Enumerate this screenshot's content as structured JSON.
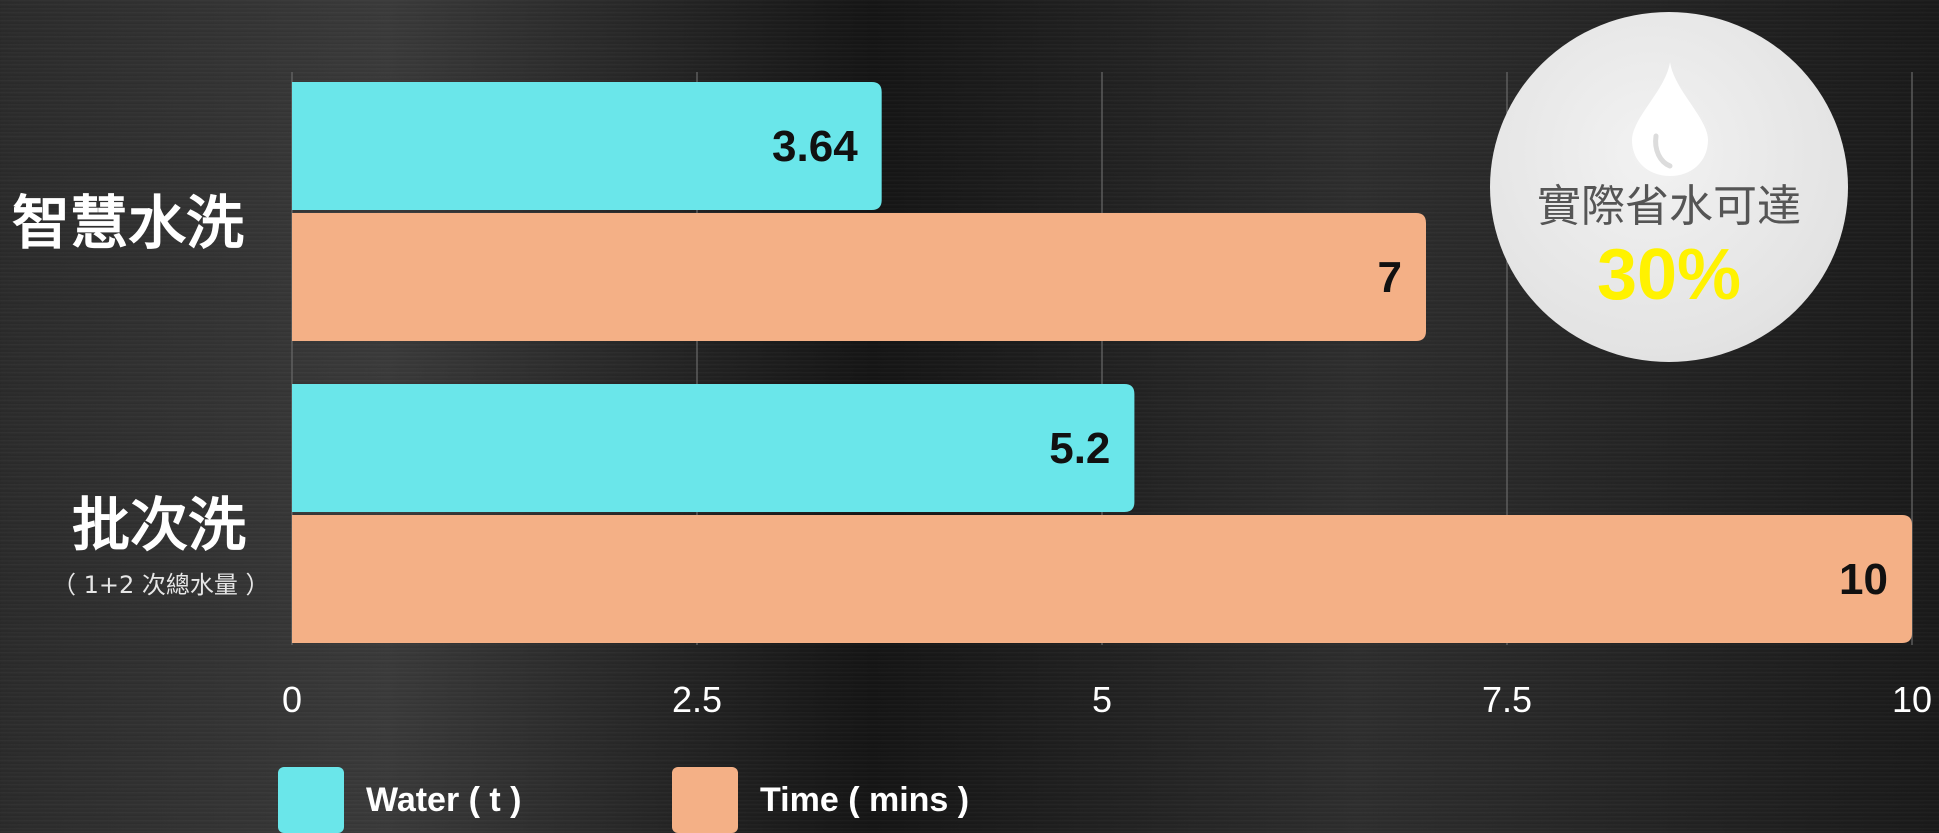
{
  "chart_data": {
    "type": "bar",
    "orientation": "horizontal",
    "categories": [
      "智慧水洗",
      "批次洗"
    ],
    "category_sublabels": [
      "",
      "（ 1+2 次總水量 ）"
    ],
    "series": [
      {
        "name": "Water ( t )",
        "values": [
          3.64,
          5.2
        ],
        "color": "#6ae6ea"
      },
      {
        "name": "Time ( mins )",
        "values": [
          7,
          10
        ],
        "color": "#f4b086"
      }
    ],
    "data_labels": [
      [
        "3.64",
        "5.2"
      ],
      [
        "7",
        "10"
      ]
    ],
    "xlim": [
      0,
      10
    ],
    "xticks": [
      "0",
      "2.5",
      "5",
      "7.5",
      "10"
    ],
    "grid": true,
    "legend": "bottom-left"
  },
  "badge": {
    "text": "實際省水可達",
    "percent": "30%",
    "icon": "water-drop-icon"
  }
}
